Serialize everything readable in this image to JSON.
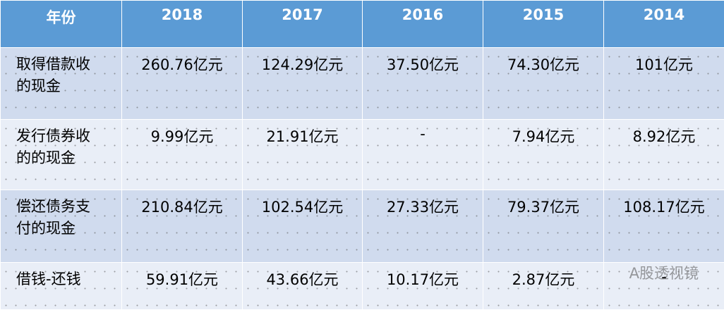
{
  "table": {
    "header": [
      "年份",
      "2018",
      "2017",
      "2016",
      "2015",
      "2014"
    ],
    "rows": [
      [
        "取得借款收的现金",
        "260.76亿元",
        "124.29亿元",
        "37.50亿元",
        "74.30亿元",
        "101亿元"
      ],
      [
        "发行债券收的的现金",
        "9.99亿元",
        "21.91亿元",
        "-",
        "7.94亿元",
        "8.92亿元"
      ],
      [
        "偿还债务支付的现金",
        "210.84亿元",
        "102.54亿元",
        "27.33亿元",
        "79.37亿元",
        "108.17亿元"
      ],
      [
        "借钱-还钱",
        "59.91亿元",
        "43.66亿元",
        "10.17亿元",
        "2.87亿元",
        "-"
      ]
    ]
  },
  "watermark": "A股透视镜"
}
